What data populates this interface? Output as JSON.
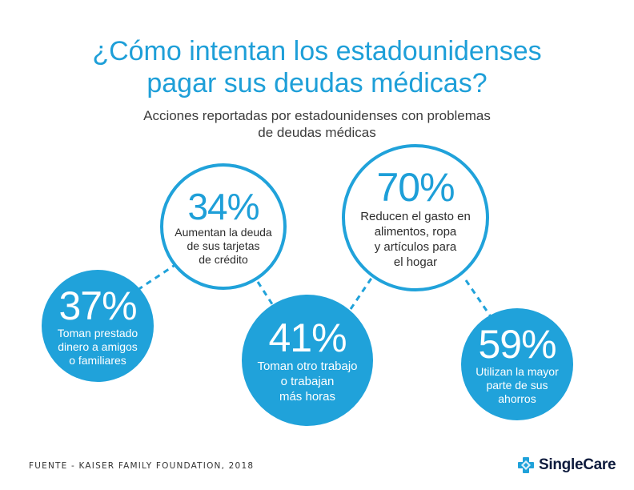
{
  "chart_data": {
    "type": "bubble-infographic",
    "title_line1": "¿Cómo intentan los estadounidenses",
    "title_line2": "pagar sus deudas médicas?",
    "subtitle_line1": "Acciones reportadas por estadounidenses con problemas",
    "subtitle_line2": "de deudas médicas",
    "items": [
      {
        "value": "37%",
        "lines": [
          "Toman prestado",
          "dinero a amigos",
          "o familiares"
        ],
        "style": "filled"
      },
      {
        "value": "34%",
        "lines": [
          "Aumentan la deuda",
          "de sus tarjetas",
          "de crédito"
        ],
        "style": "outline"
      },
      {
        "value": "41%",
        "lines": [
          "Toman otro trabajo",
          "o trabajan",
          "más horas"
        ],
        "style": "filled"
      },
      {
        "value": "70%",
        "lines": [
          "Reducen el gasto en",
          "alimentos, ropa",
          "y artículos para",
          "el hogar"
        ],
        "style": "outline"
      },
      {
        "value": "59%",
        "lines": [
          "Utilizan la mayor",
          "parte de sus",
          "ahorros"
        ],
        "style": "filled"
      }
    ]
  },
  "footer": {
    "source": "FUENTE - KAISER FAMILY FOUNDATION, 2018",
    "brand": "SingleCare"
  },
  "colors": {
    "accent": "#20a2da",
    "title": "#1e9fd8",
    "brand_dark": "#0e1b3d"
  }
}
